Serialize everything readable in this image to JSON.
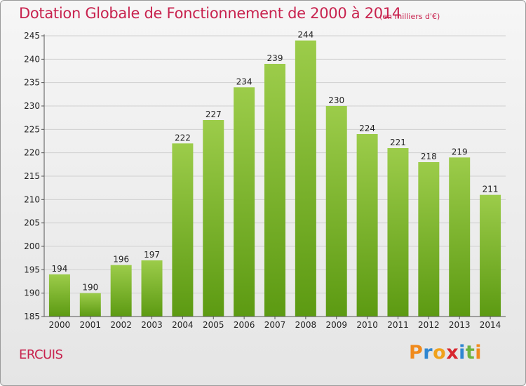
{
  "chart_data": {
    "type": "bar",
    "title": "Dotation Globale de Fonctionnement de 2000 à 2014",
    "subtitle": "(en milliers d'€)",
    "categories": [
      "2000",
      "2001",
      "2002",
      "2003",
      "2004",
      "2005",
      "2006",
      "2007",
      "2008",
      "2009",
      "2010",
      "2011",
      "2012",
      "2013",
      "2014"
    ],
    "values": [
      194,
      190,
      196,
      197,
      222,
      227,
      234,
      239,
      244,
      230,
      224,
      221,
      218,
      219,
      211
    ],
    "ylim": [
      185,
      245
    ],
    "yticks": [
      185,
      190,
      195,
      200,
      205,
      210,
      215,
      220,
      225,
      230,
      235,
      240,
      245
    ],
    "xlabel": "",
    "ylabel": "",
    "grid": true,
    "bar_color_top": "#9ccc4a",
    "bar_color_bottom": "#5c9a12",
    "data_labels": true
  },
  "commune": "ERCUIS",
  "logo": {
    "text": "Proxiti",
    "letters": [
      {
        "ch": "P",
        "color": "#f08a1c"
      },
      {
        "ch": "r",
        "color": "#2f86d1"
      },
      {
        "ch": "o",
        "color": "#f0a21c"
      },
      {
        "ch": "x",
        "color": "#d8262e"
      },
      {
        "ch": "i",
        "color": "#2f86d1"
      },
      {
        "ch": "t",
        "color": "#6db33f"
      },
      {
        "ch": "i",
        "color": "#f08a1c"
      }
    ]
  },
  "colors": {
    "title": "#c8224e",
    "axis_text": "#222222",
    "grid": "#d0d0d0"
  }
}
